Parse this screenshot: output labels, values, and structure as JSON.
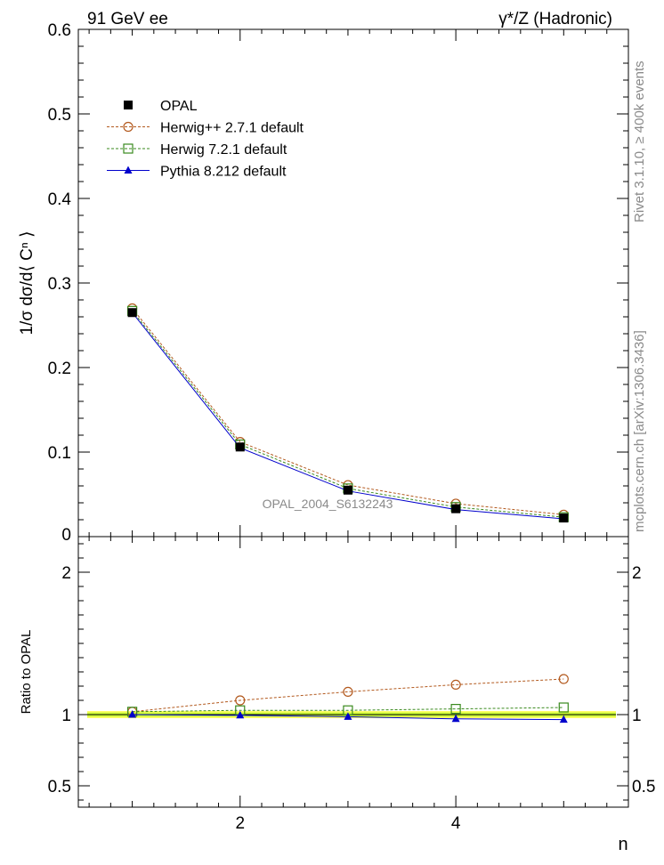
{
  "header": {
    "left_label": "91 GeV ee",
    "right_label": "γ*/Z (Hadronic)"
  },
  "side_labels": {
    "rivet": "Rivet 3.1.10, ≥ 400k events",
    "mcplots": "mcplots.cern.ch [arXiv:1306.3436]"
  },
  "watermark": "OPAL_2004_S6132243",
  "chart_data": [
    {
      "type": "line",
      "panel": "main",
      "ylabel": "1/σ dσ/d⟨ Cⁿ ⟩",
      "xlabel": "",
      "xlim": [
        0.5,
        5.6
      ],
      "ylim": [
        0,
        0.6
      ],
      "y_ticks": [
        0.1,
        0.2,
        0.3,
        0.4,
        0.5,
        0.6
      ],
      "y_tick_labels": [
        "0.1",
        "0.2",
        "0.3",
        "0.4",
        "0.5",
        "0.6"
      ],
      "zero_label": "0",
      "legend_position": "top-left",
      "x": [
        1,
        2,
        3,
        4,
        5
      ],
      "series": [
        {
          "name": "OPAL",
          "marker": "filled-square",
          "color": "#000000",
          "line": "none",
          "values": [
            0.265,
            0.106,
            0.055,
            0.033,
            0.022
          ]
        },
        {
          "name": "Herwig++ 2.7.1 default",
          "marker": "open-circle",
          "color": "#b35a1f",
          "line": "dashed",
          "values": [
            0.27,
            0.112,
            0.061,
            0.039,
            0.026
          ]
        },
        {
          "name": "Herwig 7.2.1 default",
          "marker": "open-square",
          "color": "#3a8a1e",
          "line": "dashed",
          "values": [
            0.267,
            0.109,
            0.057,
            0.035,
            0.023
          ]
        },
        {
          "name": "Pythia 8.212 default",
          "marker": "filled-triangle",
          "color": "#0000cc",
          "line": "solid",
          "values": [
            0.265,
            0.105,
            0.054,
            0.032,
            0.021
          ]
        }
      ]
    },
    {
      "type": "line",
      "panel": "ratio",
      "ylabel": "Ratio to OPAL",
      "xlabel": "n",
      "xlim": [
        0.5,
        5.6
      ],
      "ylim": [
        0.35,
        2.25
      ],
      "x_ticks": [
        2,
        4
      ],
      "x_tick_labels": [
        "2",
        "4"
      ],
      "y_ticks": [
        0.5,
        1,
        2
      ],
      "y_tick_labels": [
        "0.5",
        "1",
        "2"
      ],
      "band": {
        "inner": [
          0.985,
          1.015
        ],
        "outer": [
          0.975,
          1.025
        ],
        "inner_color": "#ccff33",
        "outer_color": "#ffff66"
      },
      "x": [
        1,
        2,
        3,
        4,
        5
      ],
      "series": [
        {
          "name": "Herwig++ 2.7.1 default",
          "color": "#b35a1f",
          "marker": "open-circle",
          "line": "dashed",
          "values": [
            1.02,
            1.1,
            1.16,
            1.21,
            1.25
          ]
        },
        {
          "name": "Herwig 7.2.1 default",
          "color": "#3a8a1e",
          "marker": "open-square",
          "line": "dashed",
          "values": [
            1.02,
            1.03,
            1.03,
            1.04,
            1.05
          ]
        },
        {
          "name": "Pythia 8.212 default",
          "color": "#0000cc",
          "marker": "filled-triangle",
          "line": "solid",
          "values": [
            1.0,
            0.995,
            0.985,
            0.97,
            0.965
          ]
        }
      ]
    }
  ]
}
